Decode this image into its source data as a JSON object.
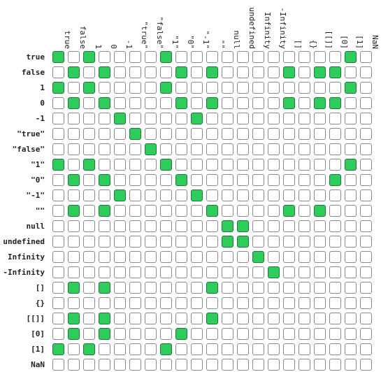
{
  "labels": [
    "true",
    "false",
    "1",
    "0",
    "-1",
    "\"true\"",
    "\"false\"",
    "\"1\"",
    "\"0\"",
    "\"-1\"",
    "\"\"",
    "null",
    "undefined",
    "Infinity",
    "-Infinity",
    "[]",
    "{}",
    "[[]]",
    "[0]",
    "[1]",
    "NaN"
  ],
  "chart_data": {
    "type": "heatmap",
    "rows": [
      "true",
      "false",
      "1",
      "0",
      "-1",
      "\"true\"",
      "\"false\"",
      "\"1\"",
      "\"0\"",
      "\"-1\"",
      "\"\"",
      "null",
      "undefined",
      "Infinity",
      "-Infinity",
      "[]",
      "{}",
      "[[]]",
      "[0]",
      "[1]",
      "NaN"
    ],
    "columns": [
      "true",
      "false",
      "1",
      "0",
      "-1",
      "\"true\"",
      "\"false\"",
      "\"1\"",
      "\"0\"",
      "\"-1\"",
      "\"\"",
      "null",
      "undefined",
      "Infinity",
      "-Infinity",
      "[]",
      "{}",
      "[[]]",
      "[0]",
      "[1]",
      "NaN"
    ],
    "values": [
      [
        1,
        0,
        1,
        0,
        0,
        0,
        0,
        1,
        0,
        0,
        0,
        0,
        0,
        0,
        0,
        0,
        0,
        0,
        0,
        1,
        0
      ],
      [
        0,
        1,
        0,
        1,
        0,
        0,
        0,
        0,
        1,
        0,
        1,
        0,
        0,
        0,
        0,
        1,
        0,
        1,
        1,
        0,
        0
      ],
      [
        1,
        0,
        1,
        0,
        0,
        0,
        0,
        1,
        0,
        0,
        0,
        0,
        0,
        0,
        0,
        0,
        0,
        0,
        0,
        1,
        0
      ],
      [
        0,
        1,
        0,
        1,
        0,
        0,
        0,
        0,
        1,
        0,
        1,
        0,
        0,
        0,
        0,
        1,
        0,
        1,
        1,
        0,
        0
      ],
      [
        0,
        0,
        0,
        0,
        1,
        0,
        0,
        0,
        0,
        1,
        0,
        0,
        0,
        0,
        0,
        0,
        0,
        0,
        0,
        0,
        0
      ],
      [
        0,
        0,
        0,
        0,
        0,
        1,
        0,
        0,
        0,
        0,
        0,
        0,
        0,
        0,
        0,
        0,
        0,
        0,
        0,
        0,
        0
      ],
      [
        0,
        0,
        0,
        0,
        0,
        0,
        1,
        0,
        0,
        0,
        0,
        0,
        0,
        0,
        0,
        0,
        0,
        0,
        0,
        0,
        0
      ],
      [
        1,
        0,
        1,
        0,
        0,
        0,
        0,
        1,
        0,
        0,
        0,
        0,
        0,
        0,
        0,
        0,
        0,
        0,
        0,
        1,
        0
      ],
      [
        0,
        1,
        0,
        1,
        0,
        0,
        0,
        0,
        1,
        0,
        0,
        0,
        0,
        0,
        0,
        0,
        0,
        0,
        1,
        0,
        0
      ],
      [
        0,
        0,
        0,
        0,
        1,
        0,
        0,
        0,
        0,
        1,
        0,
        0,
        0,
        0,
        0,
        0,
        0,
        0,
        0,
        0,
        0
      ],
      [
        0,
        1,
        0,
        1,
        0,
        0,
        0,
        0,
        0,
        0,
        1,
        0,
        0,
        0,
        0,
        1,
        0,
        1,
        0,
        0,
        0
      ],
      [
        0,
        0,
        0,
        0,
        0,
        0,
        0,
        0,
        0,
        0,
        0,
        1,
        1,
        0,
        0,
        0,
        0,
        0,
        0,
        0,
        0
      ],
      [
        0,
        0,
        0,
        0,
        0,
        0,
        0,
        0,
        0,
        0,
        0,
        1,
        1,
        0,
        0,
        0,
        0,
        0,
        0,
        0,
        0
      ],
      [
        0,
        0,
        0,
        0,
        0,
        0,
        0,
        0,
        0,
        0,
        0,
        0,
        0,
        1,
        0,
        0,
        0,
        0,
        0,
        0,
        0
      ],
      [
        0,
        0,
        0,
        0,
        0,
        0,
        0,
        0,
        0,
        0,
        0,
        0,
        0,
        0,
        1,
        0,
        0,
        0,
        0,
        0,
        0
      ],
      [
        0,
        1,
        0,
        1,
        0,
        0,
        0,
        0,
        0,
        0,
        1,
        0,
        0,
        0,
        0,
        0,
        0,
        0,
        0,
        0,
        0
      ],
      [
        0,
        0,
        0,
        0,
        0,
        0,
        0,
        0,
        0,
        0,
        0,
        0,
        0,
        0,
        0,
        0,
        0,
        0,
        0,
        0,
        0
      ],
      [
        0,
        1,
        0,
        1,
        0,
        0,
        0,
        0,
        0,
        0,
        1,
        0,
        0,
        0,
        0,
        0,
        0,
        0,
        0,
        0,
        0
      ],
      [
        0,
        1,
        0,
        1,
        0,
        0,
        0,
        0,
        1,
        0,
        0,
        0,
        0,
        0,
        0,
        0,
        0,
        0,
        0,
        0,
        0
      ],
      [
        1,
        0,
        1,
        0,
        0,
        0,
        0,
        1,
        0,
        0,
        0,
        0,
        0,
        0,
        0,
        0,
        0,
        0,
        0,
        0,
        0
      ],
      [
        0,
        0,
        0,
        0,
        0,
        0,
        0,
        0,
        0,
        0,
        0,
        0,
        0,
        0,
        0,
        0,
        0,
        0,
        0,
        0,
        0
      ]
    ]
  },
  "colors": {
    "equal_fill": "#2ecc5a",
    "equal_border": "#1f7a3a",
    "empty_fill": "#ffffff",
    "empty_border": "#8a8a8a"
  }
}
